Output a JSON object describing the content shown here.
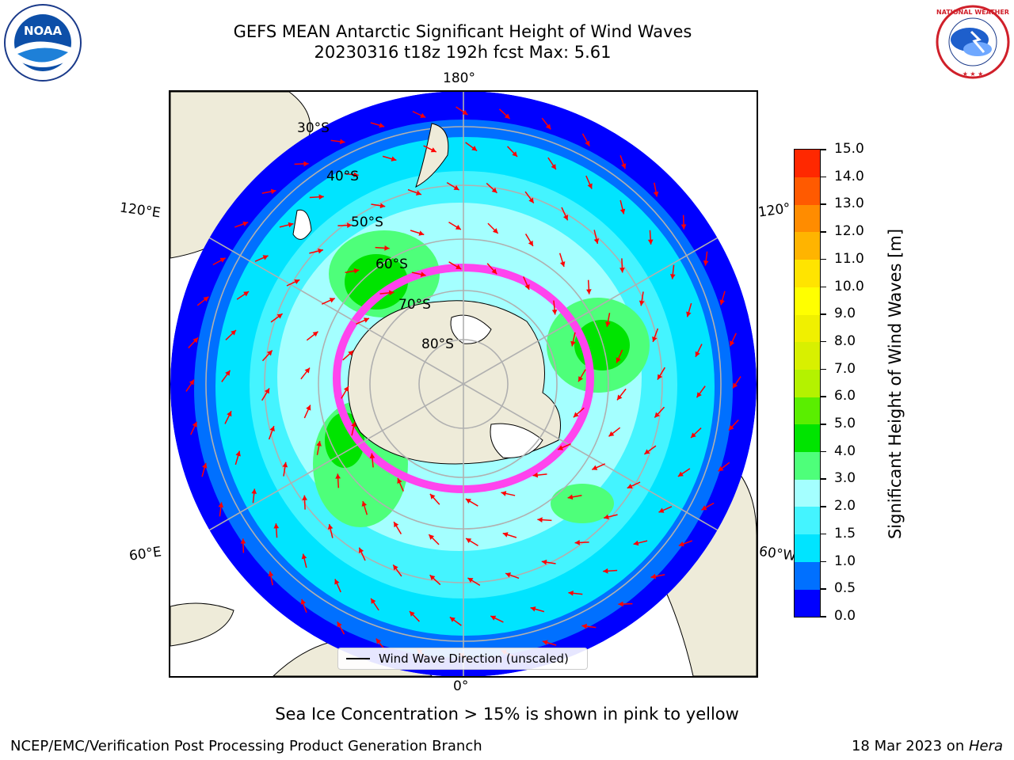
{
  "header": {
    "title_line1": "GEFS MEAN Antarctic Significant Height of Wind Waves",
    "title_line2": "20230316 t18z 192h fcst   Max: 5.61"
  },
  "logos": {
    "noaa": {
      "text": "NOAA",
      "ring_text": "NATIONAL OCEANIC AND ATMOSPHERIC ADMINISTRATION · U.S. DEPARTMENT OF COMMERCE"
    },
    "nws": {
      "ring_text": "NATIONAL WEATHER SERVICE"
    }
  },
  "map": {
    "projection": "south polar stereographic",
    "lon_labels": {
      "top": "180°",
      "bottom": "0°",
      "upper_left": "120°E",
      "lower_left": "60°E",
      "upper_right": "120°",
      "lower_right": "60°W"
    },
    "lat_labels": [
      "30°S",
      "40°S",
      "50°S",
      "60°S",
      "70°S",
      "80°S"
    ],
    "colors": {
      "land": "#eeebd9",
      "ice_sheet": "#ffffff",
      "sea_ice_edge": "#ff44ee",
      "arrow": "#ff0000",
      "gridline": "#b0b0b0"
    }
  },
  "colorbar": {
    "title": "Significant Height of Wind Waves [m]",
    "ticks": [
      "0.0",
      "0.5",
      "1.0",
      "1.5",
      "2.0",
      "3.0",
      "4.0",
      "5.0",
      "6.0",
      "7.0",
      "8.0",
      "9.0",
      "10.0",
      "11.0",
      "12.0",
      "13.0",
      "14.0",
      "15.0"
    ],
    "colors": [
      "#0000ff",
      "#0070ff",
      "#00e4ff",
      "#44f4ff",
      "#a4ffff",
      "#4eff7a",
      "#00e400",
      "#5aee00",
      "#b4f200",
      "#d8f000",
      "#f0f000",
      "#ffff00",
      "#ffe400",
      "#ffb400",
      "#ff8c00",
      "#ff5a00",
      "#ff2800"
    ]
  },
  "legend": {
    "text": "Wind Wave Direction (unscaled)"
  },
  "note": "Sea Ice Concentration > 15% is shown in pink to yellow",
  "footer": {
    "left": "NCEP/EMC/Verification Post Processing Product Generation Branch",
    "right_date": "18 Mar 2023 on ",
    "right_host": "Hera"
  }
}
